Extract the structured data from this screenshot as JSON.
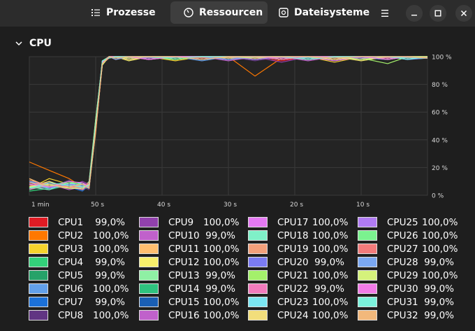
{
  "tabs": [
    {
      "label": "Prozesse",
      "icon": "list-icon"
    },
    {
      "label": "Ressourcen",
      "icon": "gauge-icon",
      "active": true
    },
    {
      "label": "Dateisysteme",
      "icon": "disk-icon"
    }
  ],
  "window": {
    "menu_icon": "hamburger-icon",
    "minimize_icon": "minimize-icon",
    "maximize_icon": "maximize-icon",
    "close_icon": "close-icon"
  },
  "section": {
    "title": "CPU",
    "expanded": true
  },
  "chart_data": {
    "type": "line",
    "x_tick_labels": [
      "1 min",
      "50 s",
      "40 s",
      "30 s",
      "20 s",
      "10 s"
    ],
    "y_tick_labels": [
      "100 %",
      "80 %",
      "60 %",
      "40 %",
      "20 %",
      "0 %"
    ],
    "ylim": [
      0,
      100
    ],
    "xlim_seconds_ago": [
      60,
      0
    ],
    "grid": true,
    "x": [
      60,
      57,
      54,
      52,
      51,
      50,
      49,
      48,
      47,
      45,
      42,
      38,
      34,
      30,
      26,
      22,
      18,
      14,
      10,
      6,
      3,
      0
    ],
    "series": [
      {
        "name": "CPU1",
        "values": [
          8,
          6,
          10,
          5,
          10,
          48,
          95,
          99,
          100,
          98,
          100,
          99,
          100,
          98,
          99,
          97,
          100,
          99,
          98,
          100,
          99,
          99
        ]
      },
      {
        "name": "CPU2",
        "values": [
          24,
          18,
          12,
          6,
          8,
          45,
          96,
          100,
          98,
          100,
          99,
          100,
          98,
          100,
          86,
          99,
          100,
          98,
          100,
          99,
          100,
          100
        ]
      },
      {
        "name": "CPU3",
        "values": [
          5,
          12,
          8,
          4,
          6,
          55,
          94,
          100,
          100,
          99,
          100,
          97,
          100,
          99,
          100,
          98,
          100,
          96,
          100,
          99,
          100,
          100
        ]
      },
      {
        "name": "CPU4",
        "values": [
          3,
          5,
          9,
          8,
          5,
          50,
          97,
          99,
          100,
          100,
          98,
          100,
          99,
          100,
          98,
          100,
          99,
          100,
          98,
          100,
          100,
          99
        ]
      },
      {
        "name": "CPU5",
        "values": [
          6,
          4,
          7,
          5,
          9,
          52,
          96,
          100,
          99,
          100,
          100,
          98,
          100,
          100,
          99,
          100,
          98,
          100,
          100,
          99,
          100,
          99
        ]
      },
      {
        "name": "CPU6",
        "values": [
          10,
          8,
          5,
          7,
          6,
          49,
          95,
          100,
          100,
          98,
          100,
          100,
          97,
          100,
          100,
          99,
          100,
          98,
          100,
          100,
          99,
          100
        ]
      },
      {
        "name": "CPU7",
        "values": [
          4,
          9,
          6,
          3,
          7,
          53,
          96,
          99,
          100,
          100,
          99,
          100,
          100,
          98,
          100,
          100,
          99,
          100,
          99,
          98,
          100,
          99
        ]
      },
      {
        "name": "CPU8",
        "values": [
          7,
          5,
          11,
          6,
          4,
          47,
          94,
          100,
          98,
          100,
          100,
          99,
          100,
          100,
          97,
          100,
          100,
          99,
          100,
          100,
          99,
          100
        ]
      },
      {
        "name": "CPU9",
        "values": [
          9,
          7,
          6,
          10,
          8,
          51,
          95,
          100,
          100,
          99,
          100,
          100,
          98,
          100,
          100,
          96,
          100,
          100,
          99,
          100,
          100,
          100
        ]
      },
      {
        "name": "CPU10",
        "values": [
          5,
          8,
          4,
          6,
          9,
          54,
          97,
          99,
          100,
          100,
          98,
          100,
          100,
          99,
          100,
          100,
          97,
          100,
          100,
          98,
          100,
          99
        ]
      },
      {
        "name": "CPU11",
        "values": [
          12,
          6,
          9,
          5,
          6,
          50,
          96,
          100,
          99,
          100,
          100,
          98,
          100,
          100,
          99,
          100,
          100,
          98,
          100,
          100,
          99,
          100
        ]
      },
      {
        "name": "CPU12",
        "values": [
          6,
          10,
          5,
          8,
          5,
          46,
          95,
          100,
          100,
          97,
          100,
          100,
          99,
          100,
          100,
          98,
          100,
          100,
          97,
          100,
          100,
          100
        ]
      },
      {
        "name": "CPU13",
        "values": [
          8,
          5,
          7,
          4,
          10,
          55,
          96,
          100,
          100,
          100,
          99,
          100,
          100,
          98,
          100,
          100,
          99,
          100,
          100,
          99,
          100,
          99
        ]
      },
      {
        "name": "CPU14",
        "values": [
          4,
          7,
          10,
          6,
          5,
          49,
          97,
          99,
          100,
          100,
          100,
          99,
          100,
          100,
          98,
          100,
          100,
          99,
          100,
          100,
          98,
          99
        ]
      },
      {
        "name": "CPU15",
        "values": [
          7,
          9,
          5,
          7,
          8,
          52,
          95,
          100,
          99,
          100,
          100,
          100,
          98,
          100,
          100,
          99,
          100,
          100,
          98,
          100,
          100,
          100
        ]
      },
      {
        "name": "CPU16",
        "values": [
          5,
          6,
          8,
          5,
          6,
          48,
          96,
          100,
          100,
          99,
          100,
          100,
          100,
          97,
          100,
          100,
          98,
          100,
          100,
          99,
          100,
          100
        ]
      },
      {
        "name": "CPU17",
        "values": [
          9,
          8,
          6,
          9,
          7,
          50,
          94,
          100,
          100,
          100,
          98,
          100,
          100,
          100,
          99,
          100,
          100,
          97,
          100,
          100,
          99,
          100
        ]
      },
      {
        "name": "CPU18",
        "values": [
          6,
          4,
          9,
          6,
          9,
          53,
          96,
          99,
          100,
          100,
          100,
          98,
          100,
          100,
          100,
          99,
          100,
          100,
          98,
          100,
          100,
          100
        ]
      },
      {
        "name": "CPU19",
        "values": [
          11,
          7,
          5,
          8,
          5,
          47,
          95,
          100,
          98,
          100,
          100,
          100,
          99,
          100,
          100,
          100,
          98,
          100,
          100,
          99,
          100,
          100
        ]
      },
      {
        "name": "CPU20",
        "values": [
          5,
          9,
          7,
          5,
          8,
          51,
          97,
          100,
          100,
          99,
          100,
          100,
          100,
          98,
          100,
          100,
          100,
          99,
          100,
          100,
          98,
          99
        ]
      },
      {
        "name": "CPU21",
        "values": [
          7,
          6,
          10,
          7,
          6,
          54,
          96,
          100,
          100,
          100,
          99,
          100,
          100,
          100,
          98,
          100,
          100,
          100,
          99,
          95,
          100,
          100
        ]
      },
      {
        "name": "CPU22",
        "values": [
          4,
          8,
          6,
          4,
          9,
          49,
          95,
          99,
          100,
          100,
          100,
          99,
          100,
          100,
          100,
          98,
          100,
          100,
          100,
          99,
          100,
          99
        ]
      },
      {
        "name": "CPU23",
        "values": [
          8,
          5,
          8,
          9,
          5,
          52,
          96,
          100,
          99,
          100,
          100,
          100,
          98,
          100,
          100,
          100,
          99,
          100,
          100,
          100,
          98,
          100
        ]
      },
      {
        "name": "CPU24",
        "values": [
          6,
          10,
          5,
          6,
          7,
          48,
          94,
          100,
          100,
          98,
          100,
          100,
          100,
          99,
          100,
          100,
          100,
          98,
          100,
          100,
          100,
          100
        ]
      },
      {
        "name": "CPU25",
        "values": [
          9,
          6,
          7,
          5,
          8,
          50,
          96,
          100,
          100,
          100,
          99,
          100,
          100,
          100,
          98,
          100,
          100,
          100,
          99,
          100,
          100,
          100
        ]
      },
      {
        "name": "CPU26",
        "values": [
          5,
          7,
          9,
          8,
          6,
          53,
          97,
          100,
          100,
          100,
          100,
          98,
          100,
          100,
          100,
          99,
          100,
          100,
          100,
          98,
          100,
          100
        ]
      },
      {
        "name": "CPU27",
        "values": [
          7,
          9,
          6,
          6,
          9,
          47,
          95,
          99,
          100,
          100,
          100,
          100,
          99,
          100,
          100,
          100,
          98,
          100,
          100,
          100,
          99,
          100
        ]
      },
      {
        "name": "CPU28",
        "values": [
          10,
          5,
          8,
          7,
          5,
          51,
          96,
          100,
          98,
          100,
          100,
          100,
          100,
          98,
          100,
          100,
          100,
          99,
          100,
          100,
          100,
          99
        ]
      },
      {
        "name": "CPU29",
        "values": [
          6,
          8,
          5,
          5,
          8,
          54,
          94,
          100,
          100,
          99,
          100,
          100,
          100,
          100,
          99,
          100,
          100,
          100,
          98,
          100,
          100,
          100
        ]
      },
      {
        "name": "CPU30",
        "values": [
          8,
          6,
          10,
          9,
          6,
          49,
          96,
          100,
          100,
          100,
          98,
          100,
          100,
          100,
          100,
          99,
          100,
          100,
          100,
          98,
          100,
          99
        ]
      },
      {
        "name": "CPU31",
        "values": [
          5,
          9,
          7,
          6,
          7,
          52,
          97,
          99,
          100,
          100,
          100,
          99,
          100,
          100,
          100,
          100,
          98,
          100,
          100,
          100,
          99,
          99
        ]
      },
      {
        "name": "CPU32",
        "values": [
          9,
          7,
          6,
          8,
          5,
          48,
          95,
          100,
          99,
          100,
          100,
          100,
          98,
          100,
          100,
          100,
          100,
          99,
          100,
          100,
          100,
          99
        ]
      }
    ]
  },
  "legend": [
    {
      "name": "CPU1",
      "value": "99,0%",
      "color": "#e01b24"
    },
    {
      "name": "CPU2",
      "value": "100,0%",
      "color": "#ff7800"
    },
    {
      "name": "CPU3",
      "value": "100,0%",
      "color": "#f6d32d"
    },
    {
      "name": "CPU4",
      "value": "99,0%",
      "color": "#33d17a"
    },
    {
      "name": "CPU5",
      "value": "99,0%",
      "color": "#26a269"
    },
    {
      "name": "CPU6",
      "value": "100,0%",
      "color": "#62a0ea"
    },
    {
      "name": "CPU7",
      "value": "99,0%",
      "color": "#1c71d8"
    },
    {
      "name": "CPU8",
      "value": "100,0%",
      "color": "#613583"
    },
    {
      "name": "CPU9",
      "value": "100,0%",
      "color": "#9141ac"
    },
    {
      "name": "CPU10",
      "value": "99,0%",
      "color": "#c061cb"
    },
    {
      "name": "CPU11",
      "value": "100,0%",
      "color": "#ffbe6f"
    },
    {
      "name": "CPU12",
      "value": "100,0%",
      "color": "#f9f06b"
    },
    {
      "name": "CPU13",
      "value": "99,0%",
      "color": "#8ff0a4"
    },
    {
      "name": "CPU14",
      "value": "99,0%",
      "color": "#2ec27e"
    },
    {
      "name": "CPU15",
      "value": "100,0%",
      "color": "#1a5fb4"
    },
    {
      "name": "CPU16",
      "value": "100,0%",
      "color": "#c061cb"
    },
    {
      "name": "CPU17",
      "value": "100,0%",
      "color": "#e479f2"
    },
    {
      "name": "CPU18",
      "value": "100,0%",
      "color": "#7ff0c8"
    },
    {
      "name": "CPU19",
      "value": "100,0%",
      "color": "#f2a07b"
    },
    {
      "name": "CPU20",
      "value": "99,0%",
      "color": "#7b7bf2"
    },
    {
      "name": "CPU21",
      "value": "100,0%",
      "color": "#a4f06b"
    },
    {
      "name": "CPU22",
      "value": "99,0%",
      "color": "#f27bbd"
    },
    {
      "name": "CPU23",
      "value": "100,0%",
      "color": "#7be6f2"
    },
    {
      "name": "CPU24",
      "value": "100,0%",
      "color": "#f2de7b"
    },
    {
      "name": "CPU25",
      "value": "100,0%",
      "color": "#b07bf2"
    },
    {
      "name": "CPU26",
      "value": "100,0%",
      "color": "#7bf28f"
    },
    {
      "name": "CPU27",
      "value": "100,0%",
      "color": "#f27b7b"
    },
    {
      "name": "CPU28",
      "value": "99,0%",
      "color": "#7ba8f2"
    },
    {
      "name": "CPU29",
      "value": "100,0%",
      "color": "#d5f27b"
    },
    {
      "name": "CPU30",
      "value": "99,0%",
      "color": "#f27be7"
    },
    {
      "name": "CPU31",
      "value": "99,0%",
      "color": "#7bf2dc"
    },
    {
      "name": "CPU32",
      "value": "99,0%",
      "color": "#f2b87b"
    }
  ]
}
